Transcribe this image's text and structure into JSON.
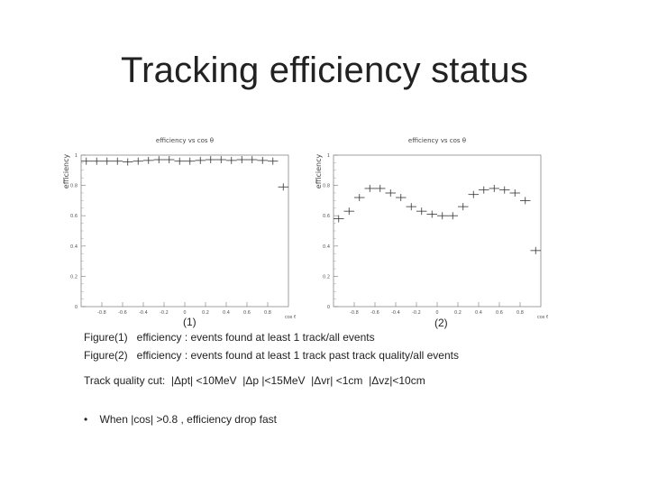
{
  "slide": {
    "title": "Tracking efficiency status"
  },
  "figures": [
    {
      "label": "(1)"
    },
    {
      "label": "(2)"
    }
  ],
  "captions": [
    "Figure(1)   efficiency : events found at least 1 track/all events",
    "Figure(2)   efficiency : events found at least 1 track past track quality/all events"
  ],
  "quality_cut": "Track quality cut:  |Δpt| <10MeV  |Δp |<15MeV  |Δvr| <1cm  |Δvz|<10cm",
  "bullets": [
    {
      "marker": "•",
      "text": "When |cos| >0.8 , efficiency drop fast"
    }
  ],
  "chart_data": [
    {
      "type": "scatter",
      "title": "efficiency vs cos θ",
      "xlabel": "cos θ",
      "ylabel": "efficiency",
      "xlim": [
        -1,
        1
      ],
      "ylim": [
        0,
        1
      ],
      "x_ticks": [
        "-0.8",
        "-0.6",
        "-0.4",
        "-0.2",
        "0",
        "0.2",
        "0.4",
        "0.6",
        "0.8"
      ],
      "y_ticks": [
        "0",
        "0.2",
        "0.4",
        "0.6",
        "0.8",
        "1"
      ],
      "x": [
        -0.95,
        -0.85,
        -0.75,
        -0.65,
        -0.55,
        -0.45,
        -0.35,
        -0.25,
        -0.15,
        -0.05,
        0.05,
        0.15,
        0.25,
        0.35,
        0.45,
        0.55,
        0.65,
        0.75,
        0.85,
        0.95
      ],
      "y": [
        0.96,
        0.96,
        0.96,
        0.96,
        0.955,
        0.96,
        0.965,
        0.97,
        0.97,
        0.96,
        0.96,
        0.965,
        0.97,
        0.97,
        0.965,
        0.97,
        0.97,
        0.965,
        0.96,
        0.79
      ]
    },
    {
      "type": "scatter",
      "title": "efficiency vs cos θ",
      "xlabel": "cos θ",
      "ylabel": "efficiency",
      "xlim": [
        -1,
        1
      ],
      "ylim": [
        0,
        1
      ],
      "x_ticks": [
        "-0.8",
        "-0.6",
        "-0.4",
        "-0.2",
        "0",
        "0.2",
        "0.4",
        "0.6",
        "0.8"
      ],
      "y_ticks": [
        "0",
        "0.2",
        "0.4",
        "0.6",
        "0.8",
        "1"
      ],
      "x": [
        -0.95,
        -0.85,
        -0.75,
        -0.65,
        -0.55,
        -0.45,
        -0.35,
        -0.25,
        -0.15,
        -0.05,
        0.05,
        0.15,
        0.25,
        0.35,
        0.45,
        0.55,
        0.65,
        0.75,
        0.85,
        0.95
      ],
      "y": [
        0.58,
        0.63,
        0.72,
        0.78,
        0.78,
        0.75,
        0.72,
        0.66,
        0.63,
        0.61,
        0.6,
        0.6,
        0.66,
        0.74,
        0.77,
        0.78,
        0.77,
        0.75,
        0.7,
        0.37
      ]
    }
  ]
}
